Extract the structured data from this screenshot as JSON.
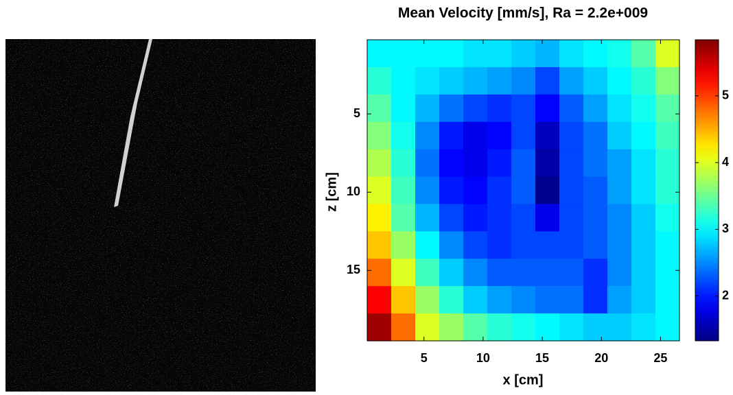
{
  "chart_data": {
    "type": "heatmap",
    "title": "Mean Velocity [mm/s], Ra = 2.2e+009",
    "xlabel": "x [cm]",
    "ylabel": "z [cm]",
    "xlim": [
      0.2,
      26.6
    ],
    "ylim": [
      19.5,
      0.26
    ],
    "xticks": [
      5,
      10,
      15,
      20,
      25
    ],
    "yticks": [
      5,
      10,
      15
    ],
    "colormap": "jet",
    "clim": [
      1.33,
      5.84
    ],
    "cticks": [
      2,
      3,
      4,
      5
    ],
    "values": [
      [
        3.0,
        3.0,
        3.0,
        3.0,
        2.9,
        2.9,
        2.8,
        2.7,
        2.9,
        3.0,
        3.1,
        3.4,
        4.0
      ],
      [
        3.2,
        3.0,
        2.9,
        2.8,
        2.7,
        2.6,
        2.5,
        2.2,
        2.6,
        2.8,
        3.0,
        3.2,
        3.6
      ],
      [
        3.4,
        3.0,
        2.7,
        2.4,
        2.2,
        2.1,
        2.2,
        1.9,
        2.3,
        2.6,
        2.9,
        3.1,
        3.4
      ],
      [
        3.6,
        3.1,
        2.5,
        2.0,
        1.8,
        1.9,
        2.2,
        1.6,
        2.2,
        2.4,
        2.8,
        3.0,
        3.3
      ],
      [
        3.8,
        3.2,
        2.4,
        1.9,
        1.8,
        2.0,
        2.3,
        1.5,
        2.2,
        2.4,
        2.6,
        2.9,
        3.2
      ],
      [
        4.0,
        3.3,
        2.5,
        2.0,
        1.9,
        2.1,
        2.3,
        1.4,
        2.2,
        2.3,
        2.6,
        2.9,
        3.2
      ],
      [
        4.2,
        3.4,
        2.7,
        2.2,
        2.0,
        2.1,
        2.2,
        1.8,
        2.2,
        2.3,
        2.5,
        2.8,
        3.1
      ],
      [
        4.4,
        3.7,
        3.0,
        2.5,
        2.2,
        2.1,
        2.2,
        2.2,
        2.2,
        2.3,
        2.5,
        2.8,
        3.0
      ],
      [
        4.8,
        4.0,
        3.3,
        2.8,
        2.5,
        2.3,
        2.3,
        2.3,
        2.3,
        2.1,
        2.5,
        2.8,
        3.0
      ],
      [
        5.3,
        4.4,
        3.7,
        3.2,
        2.8,
        2.6,
        2.5,
        2.4,
        2.4,
        2.1,
        2.6,
        2.8,
        3.0
      ],
      [
        5.7,
        4.8,
        4.0,
        3.7,
        3.4,
        3.2,
        3.1,
        3.0,
        2.9,
        2.8,
        2.8,
        2.9,
        3.0
      ]
    ]
  }
}
